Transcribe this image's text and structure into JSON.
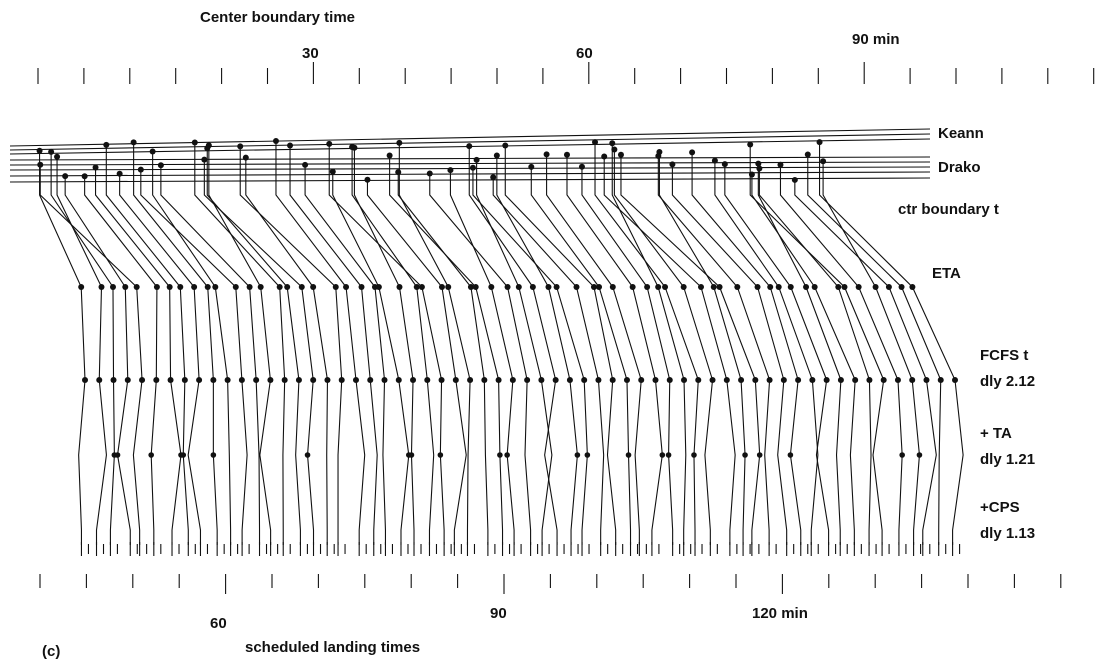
{
  "top_axis": {
    "title": "Center boundary time",
    "ticks": [
      "30",
      "60",
      "90 min"
    ]
  },
  "streams": [
    "Keann",
    "Drako"
  ],
  "stages": {
    "boundary": "ctr boundary t",
    "eta": "ETA",
    "fcfs": "FCFS t",
    "fcfs_delay": "dly 2.12",
    "ta": "+ TA",
    "ta_delay": "dly 1.21",
    "cps": "+CPS",
    "cps_delay": "dly 1.13"
  },
  "bottom_axis": {
    "title": "scheduled landing times",
    "ticks": [
      "60",
      "90",
      "120 min"
    ]
  },
  "panel": "(c)"
}
